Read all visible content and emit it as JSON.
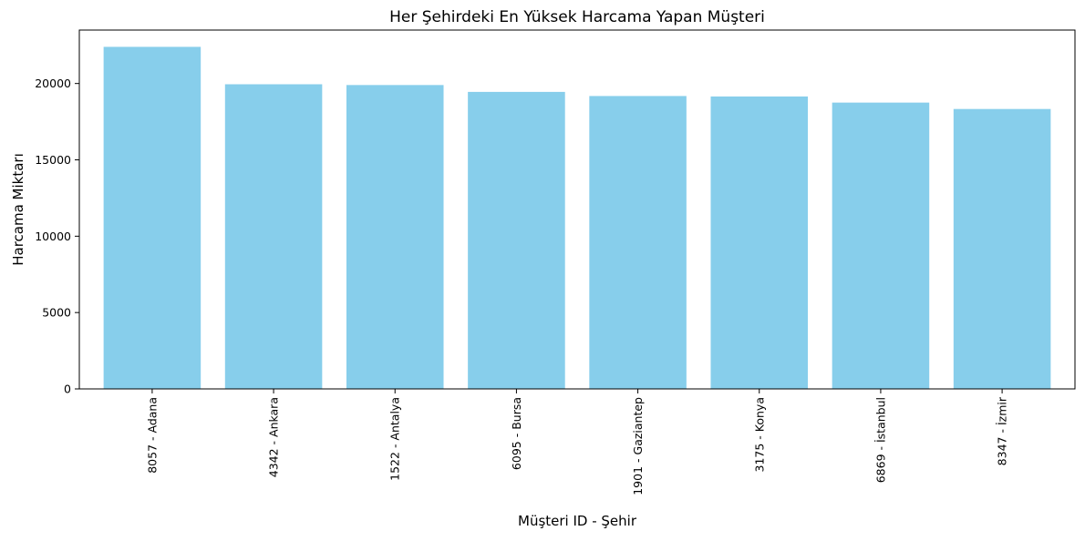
{
  "chart_data": {
    "type": "bar",
    "title": "Her Şehirdeki En Yüksek Harcama Yapan Müşteri",
    "xlabel": "Müşteri ID - Şehir",
    "ylabel": "Harcama Miktarı",
    "categories": [
      "8057 - Adana",
      "4342 - Ankara",
      "1522 - Antalya",
      "6095 - Bursa",
      "1901 - Gaziantep",
      "3175 - Konya",
      "6869 - İstanbul",
      "8347 - İzmir"
    ],
    "values": [
      22400,
      19950,
      19900,
      19450,
      19180,
      19150,
      18750,
      18330
    ],
    "ylim": [
      0,
      23500
    ],
    "yticks": [
      0,
      5000,
      10000,
      15000,
      20000
    ],
    "bar_color": "#87CEEB",
    "grid": false,
    "legend": "none"
  }
}
